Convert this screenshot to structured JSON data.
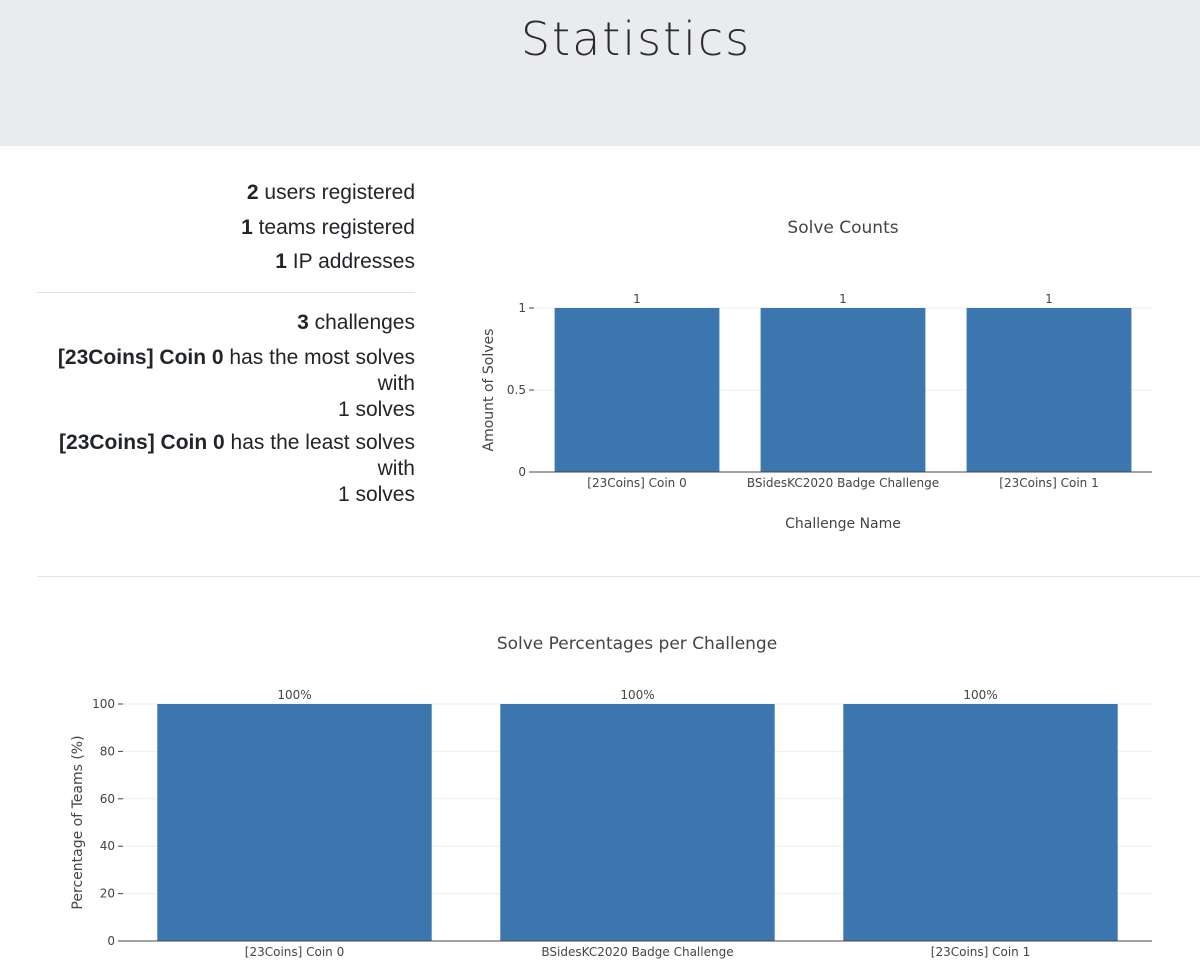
{
  "page": {
    "title": "Statistics"
  },
  "stats": {
    "users": {
      "count": "2",
      "label": " users registered"
    },
    "teams": {
      "count": "1",
      "label": " teams registered"
    },
    "ips": {
      "count": "1",
      "label": " IP addresses"
    },
    "challenges": {
      "count": "3",
      "label": " challenges"
    },
    "most": {
      "name": "[23Coins] Coin 0",
      "mid": " has the most solves",
      "with": "with",
      "solves": "1 solves"
    },
    "least": {
      "name": "[23Coins] Coin 0",
      "mid": " has the least solves",
      "with": "with",
      "solves": "1 solves"
    }
  },
  "colors": {
    "bar": "#3b76ae",
    "header_bg": "#eaebee"
  },
  "chart_data": [
    {
      "type": "bar",
      "title": "Solve Counts",
      "xlabel": "Challenge Name",
      "ylabel": "Amount of Solves",
      "categories": [
        "[23Coins] Coin 0",
        "BSidesKC2020 Badge Challenge",
        "[23Coins] Coin 1"
      ],
      "values": [
        1,
        1,
        1
      ],
      "data_labels": [
        "1",
        "1",
        "1"
      ],
      "ylim": [
        0,
        1
      ],
      "yticks": [
        0,
        0.5,
        1
      ],
      "ytick_labels": [
        "0",
        "0.5",
        "1"
      ],
      "grid": true
    },
    {
      "type": "bar",
      "title": "Solve Percentages per Challenge",
      "xlabel": "",
      "ylabel": "Percentage of Teams (%)",
      "categories": [
        "[23Coins] Coin 0",
        "BSidesKC2020 Badge Challenge",
        "[23Coins] Coin 1"
      ],
      "values": [
        100,
        100,
        100
      ],
      "data_labels": [
        "100%",
        "100%",
        "100%"
      ],
      "ylim": [
        0,
        100
      ],
      "yticks": [
        0,
        20,
        40,
        60,
        80,
        100
      ],
      "ytick_labels": [
        "0",
        "20",
        "40",
        "60",
        "80",
        "100"
      ],
      "grid": true
    }
  ]
}
